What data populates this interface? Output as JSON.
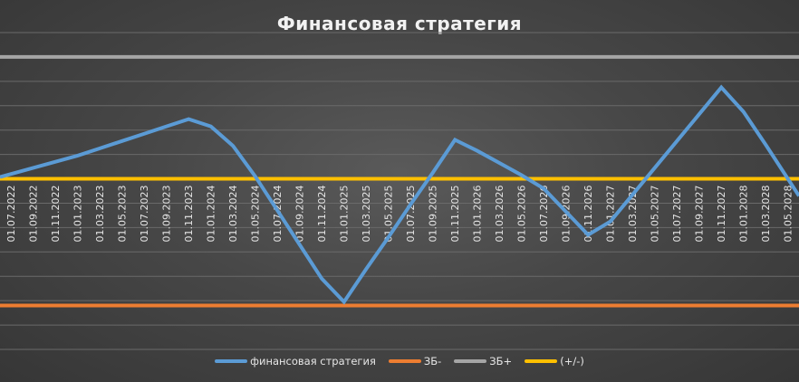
{
  "chart_data": {
    "type": "line",
    "title": "Финансовая стратегия",
    "categories": [
      "01.07.2022",
      "01.09.2022",
      "01.11.2022",
      "01.01.2023",
      "01.03.2023",
      "01.05.2023",
      "01.07.2023",
      "01.09.2023",
      "01.11.2023",
      "01.01.2024",
      "01.03.2024",
      "01.05.2024",
      "01.07.2024",
      "01.09.2024",
      "01.11.2024",
      "01.01.2025",
      "01.03.2025",
      "01.05.2025",
      "01.07.2025",
      "01.09.2025",
      "01.11.2025",
      "01.01.2026",
      "01.03.2026",
      "01.05.2026",
      "01.07.2026",
      "01.09.2026",
      "01.11.2026",
      "01.01.2027",
      "01.03.2027",
      "01.05.2027",
      "01.07.2027",
      "01.09.2027",
      "01.11.2027",
      "01.01.2028",
      "01.03.2028",
      "01.05.2028"
    ],
    "series": [
      {
        "name": "финансовая стратегия",
        "color": "#5b9bd5",
        "values": [
          0.4,
          0.9,
          1.4,
          1.9,
          2.5,
          3.1,
          3.7,
          4.3,
          4.9,
          4.3,
          2.7,
          0.2,
          -2.6,
          -5.4,
          -8.2,
          -10.1,
          -7.4,
          -4.8,
          -2.1,
          0.5,
          3.2,
          2.3,
          1.3,
          0.3,
          -0.8,
          -2.7,
          -4.6,
          -3.5,
          -1.3,
          0.9,
          3.1,
          5.3,
          7.5,
          5.5,
          2.8,
          0.0
        ]
      },
      {
        "name": "ЗБ-",
        "color": "#ed7d31",
        "values": [
          -10.4,
          -10.4,
          -10.4,
          -10.4,
          -10.4,
          -10.4,
          -10.4,
          -10.4,
          -10.4,
          -10.4,
          -10.4,
          -10.4,
          -10.4,
          -10.4,
          -10.4,
          -10.4,
          -10.4,
          -10.4,
          -10.4,
          -10.4,
          -10.4,
          -10.4,
          -10.4,
          -10.4,
          -10.4,
          -10.4,
          -10.4,
          -10.4,
          -10.4,
          -10.4,
          -10.4,
          -10.4,
          -10.4,
          -10.4,
          -10.4,
          -10.4
        ]
      },
      {
        "name": "ЗБ+",
        "color": "#a5a5a5",
        "values": [
          10.0,
          10.0,
          10.0,
          10.0,
          10.0,
          10.0,
          10.0,
          10.0,
          10.0,
          10.0,
          10.0,
          10.0,
          10.0,
          10.0,
          10.0,
          10.0,
          10.0,
          10.0,
          10.0,
          10.0,
          10.0,
          10.0,
          10.0,
          10.0,
          10.0,
          10.0,
          10.0,
          10.0,
          10.0,
          10.0,
          10.0,
          10.0,
          10.0,
          10.0,
          10.0,
          10.0
        ]
      },
      {
        "name": "(+/-)",
        "color": "#ffc000",
        "values": [
          0,
          0,
          0,
          0,
          0,
          0,
          0,
          0,
          0,
          0,
          0,
          0,
          0,
          0,
          0,
          0,
          0,
          0,
          0,
          0,
          0,
          0,
          0,
          0,
          0,
          0,
          0,
          0,
          0,
          0,
          0,
          0,
          0,
          0,
          0,
          0
        ]
      }
    ],
    "ylim": [
      -14,
      12
    ],
    "grid": true,
    "legend": "bottom",
    "xlabel": "",
    "ylabel": ""
  }
}
